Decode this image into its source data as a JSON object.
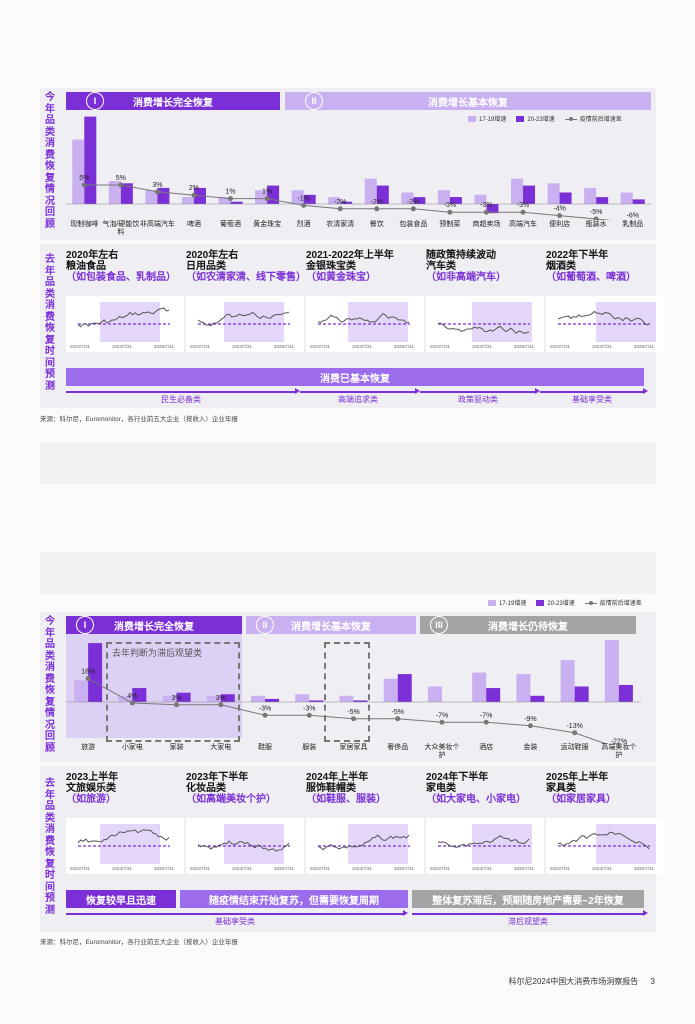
{
  "chart1": {
    "vtitle_top": "今年品类消费恢复情况回顾",
    "vtitle_bottom": "去年品类消费恢复时间预测",
    "groups": [
      {
        "num": "I",
        "label": "消费增长完全恢复"
      },
      {
        "num": "II",
        "label": "消费增长基本恢复"
      }
    ],
    "legend": {
      "a": "17-19增速",
      "b": "20-23增速",
      "c": "疫情前后增速差"
    },
    "colors": {
      "a": "#c9b0f0",
      "b": "#7b2fd6",
      "line": "#777777"
    },
    "chart_data": {
      "type": "bar",
      "categories": [
        "现制咖啡",
        "气泡/硬能饮料",
        "非高端汽车",
        "啤酒",
        "葡萄酒",
        "黄金珠宝",
        "烈酒",
        "农清家清",
        "餐饮",
        "包装食品",
        "预制菜",
        "商超卖场",
        "高端汽车",
        "便利店",
        "瓶装水",
        "乳制品"
      ],
      "series": [
        {
          "name": "17-19增速",
          "values": [
            14,
            5,
            3,
            1.5,
            1.5,
            3,
            3,
            1.5,
            5.5,
            2.5,
            3,
            2,
            5.5,
            4.5,
            3.5,
            2.5
          ]
        },
        {
          "name": "20-23增速",
          "values": [
            19,
            4.5,
            3.5,
            3.5,
            0.5,
            4,
            2,
            0.5,
            4,
            1.5,
            1.5,
            -2,
            4,
            2.5,
            1.5,
            1
          ]
        },
        {
          "name": "疫情前后增速差",
          "values": [
            5,
            5,
            3,
            2,
            1,
            1,
            -1,
            -2,
            -2,
            -2,
            -3,
            -3,
            -3,
            -4,
            -5,
            -6
          ]
        }
      ],
      "delta_labels": [
        "5%",
        "5%",
        "3%",
        "2%",
        "1%",
        "1%",
        "-1%",
        "-2%",
        "-2%",
        "-2%",
        "-3%",
        "-3%",
        "-3%",
        "-4%",
        "-5%",
        "-6%"
      ]
    },
    "minis": [
      {
        "title": "2020年左右\n粮油食品",
        "sub": "（如包装食品、乳制品）",
        "ax": [
          "2022/7/31",
          "2024/7/31",
          "2026/7/31"
        ]
      },
      {
        "title": "2020年左右\n日用品类",
        "sub": "（如农清家清、线下零售）",
        "ax": [
          "2022/7/31",
          "2024/7/31",
          "2026/7/31"
        ]
      },
      {
        "title": "2021-2022年上半年\n金银珠宝类",
        "sub": "（如黄金珠宝）",
        "ax": [
          "2022/7/31",
          "2024/7/31",
          "2026/7/31"
        ]
      },
      {
        "title": "随政策持续波动\n汽车类",
        "sub": "（如非高端汽车）",
        "ax": [
          "2022/7/31",
          "2024/7/31",
          "2026/7/31"
        ]
      },
      {
        "title": "2022年下半年\n烟酒类",
        "sub": "（如葡萄酒、啤酒）",
        "ax": [
          "2022/7/31",
          "2024/7/31",
          "2026/7/31"
        ]
      }
    ],
    "band": "消费已基本恢复",
    "arrows": [
      "民生必备类",
      "高端追求类",
      "政策驱动类",
      "基础享受类"
    ],
    "source": "来源：科尔尼，Euromonitor，各行业前五大企业（按收入）企业年报"
  },
  "chart2": {
    "vtitle_top": "今年品类消费恢复情况回顾",
    "vtitle_bottom": "去年品类消费恢复时间预测",
    "groups": [
      {
        "num": "I",
        "label": "消费增长完全恢复"
      },
      {
        "num": "II",
        "label": "消费增长基本恢复"
      },
      {
        "num": "III",
        "label": "消费增长仍待恢复"
      }
    ],
    "legend": {
      "a": "17-19增速",
      "b": "20-23增速",
      "c": "疫情前后增速差"
    },
    "dashed_label": "去年判断为滞后观望类",
    "chart_data": {
      "type": "bar",
      "categories": [
        "旅游",
        "小家电",
        "家装",
        "大家电",
        "鞋服",
        "服装",
        "家居家具",
        "奢侈品",
        "大众美妆个护",
        "酒店",
        "金装",
        "运动鞋服",
        "高端美妆个护"
      ],
      "series": [
        {
          "name": "17-19增速",
          "values": [
            7,
            2,
            2,
            2,
            2,
            2.5,
            2,
            7.5,
            5,
            9.5,
            9,
            13.5,
            20
          ]
        },
        {
          "name": "20-23增速",
          "values": [
            19,
            4.5,
            3,
            2.5,
            1,
            0.5,
            0.5,
            9,
            0,
            4.5,
            2,
            5,
            5.5
          ]
        },
        {
          "name": "疫情前后增速差",
          "values": [
            18,
            4,
            3,
            3,
            -3,
            -3,
            -5,
            -5,
            -7,
            -7,
            -9,
            -13,
            -22
          ]
        }
      ],
      "delta_labels": [
        "18%",
        "4%",
        "3%",
        "3%",
        "-3%",
        "-3%",
        "-5%",
        "-5%",
        "-7%",
        "-7%",
        "-9%",
        "-13%",
        "-22%"
      ]
    },
    "minis": [
      {
        "title": "2023上半年\n文旅娱乐类",
        "sub": "（如旅游）",
        "ax": [
          "2022/7/31",
          "2024/7/31",
          "2026/7/31"
        ]
      },
      {
        "title": "2023年下半年\n化妆品类",
        "sub": "（如高端美妆个护）",
        "ax": [
          "2022/7/31",
          "2024/7/31",
          "2026/7/31"
        ]
      },
      {
        "title": "2024年上半年\n服饰鞋帽类",
        "sub": "（如鞋服、服装）",
        "ax": [
          "2022/7/31",
          "2024/7/31",
          "2026/7/31"
        ]
      },
      {
        "title": "2024年下半年\n家电类",
        "sub": "（如大家电、小家电）",
        "ax": [
          "2022/7/31",
          "2024/7/31",
          "2026/7/31"
        ]
      },
      {
        "title": "2025年上半年\n家具类",
        "sub": "（如家居家具）",
        "ax": [
          "2022/7/31",
          "2024/7/31",
          "2026/7/31"
        ]
      }
    ],
    "bands": [
      "恢复较早且迅速",
      "随疫情结束开始复苏，但需要恢复周期",
      "整体复苏滞后，预期随房地产需要~2年恢复"
    ],
    "arrows": [
      "基础享受类",
      "滞后观望类"
    ],
    "source": "来源：科尔尼，Euromonitor，各行业前五大企业（按收入）企业年报"
  },
  "footer": {
    "text": "科尔尼2024中国大消费市场洞察报告",
    "page": "3"
  }
}
